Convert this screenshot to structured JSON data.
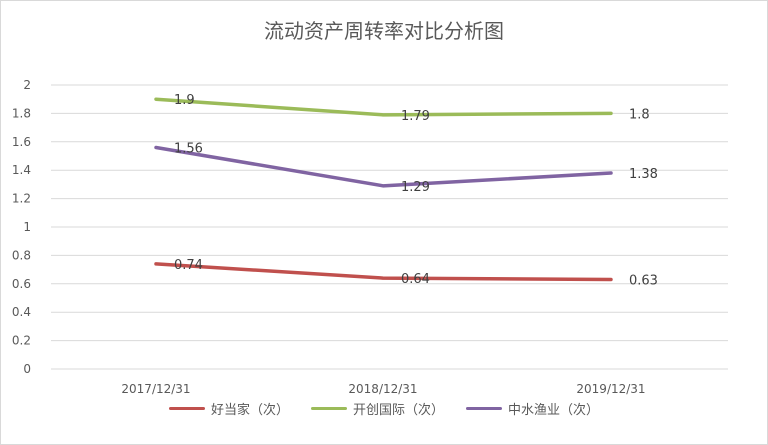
{
  "chart_data": {
    "type": "line",
    "title": "流动资产周转率对比分析图",
    "categories": [
      "2017/12/31",
      "2018/12/31",
      "2019/12/31"
    ],
    "ylim": [
      0,
      2
    ],
    "yticks": [
      "0",
      "0.2",
      "0.4",
      "0.6",
      "0.8",
      "1",
      "1.2",
      "1.4",
      "1.6",
      "1.8",
      "2"
    ],
    "grid": true,
    "legend_position": "bottom",
    "series": [
      {
        "name": "好当家（次）",
        "color": "#c0504d",
        "values": [
          0.74,
          0.64,
          0.63
        ],
        "labels": [
          "0.74",
          "0.64",
          "0.63"
        ]
      },
      {
        "name": "开创国际（次）",
        "color": "#9bbb59",
        "values": [
          1.9,
          1.79,
          1.8
        ],
        "labels": [
          "1.9",
          "1.79",
          "1.8"
        ]
      },
      {
        "name": "中水渔业（次）",
        "color": "#8064a2",
        "values": [
          1.56,
          1.29,
          1.38
        ],
        "labels": [
          "1.56",
          "1.29",
          "1.38"
        ]
      }
    ]
  }
}
